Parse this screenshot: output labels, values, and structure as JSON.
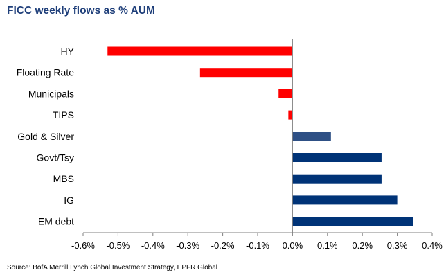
{
  "title": "FICC weekly flows as % AUM",
  "source": "Source: BofA Merrill Lynch Global Investment Strategy, EPFR Global",
  "colors": {
    "negative": "#ff0000",
    "positive": "#003377",
    "gold": "#2e5085",
    "axis": "#808080",
    "title": "#1f3f7a"
  },
  "chart_data": {
    "type": "bar",
    "orientation": "horizontal",
    "title": "FICC weekly flows as % AUM",
    "categories": [
      "HY",
      "Floating Rate",
      "Municipals",
      "TIPS",
      "Gold & Silver",
      "Govt/Tsy",
      "MBS",
      "IG",
      "EM debt"
    ],
    "values": [
      -0.53,
      -0.265,
      -0.04,
      -0.012,
      0.11,
      0.255,
      0.255,
      0.3,
      0.345
    ],
    "xlim": [
      -0.6,
      0.4
    ],
    "xticks": [
      -0.6,
      -0.5,
      -0.4,
      -0.3,
      -0.2,
      -0.1,
      0.0,
      0.1,
      0.2,
      0.3,
      0.4
    ],
    "xtick_labels": [
      "-0.6%",
      "-0.5%",
      "-0.4%",
      "-0.3%",
      "-0.2%",
      "-0.1%",
      "0.0%",
      "0.1%",
      "0.2%",
      "0.3%",
      "0.4%"
    ],
    "grid": false,
    "legend": "none"
  }
}
